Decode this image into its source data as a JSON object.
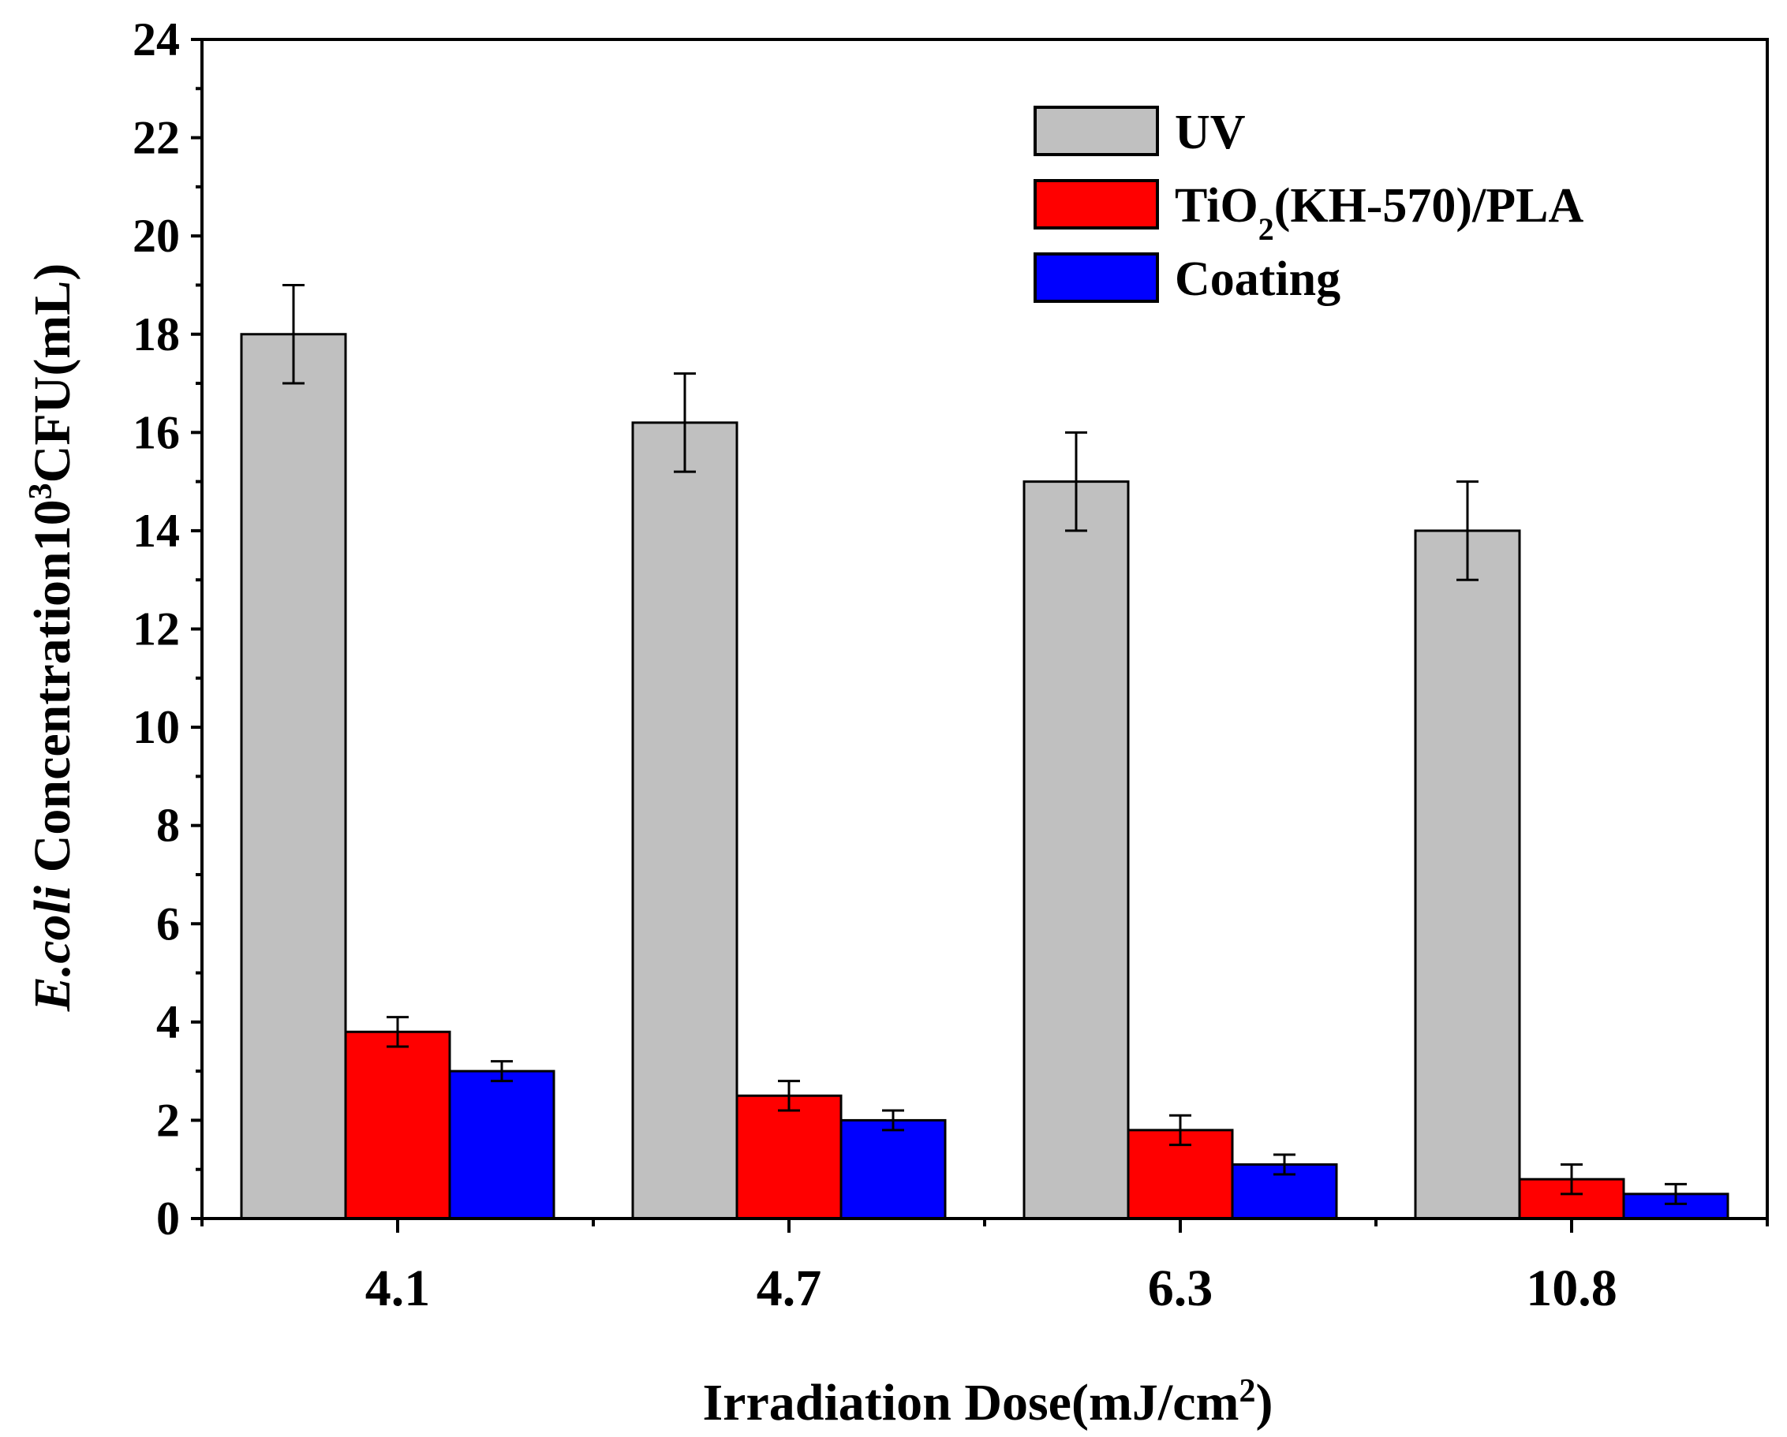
{
  "chart_data": {
    "type": "bar",
    "title": "",
    "xlabel": {
      "main": "Irradiation Dose(mJ/cm",
      "sup": "2",
      "tail": ")"
    },
    "ylabel": {
      "italic": "E.coli",
      "main": " Concentration10",
      "sup": "3",
      "tail": "CFU(mL)"
    },
    "ylim": [
      0,
      24
    ],
    "y_major_step": 2,
    "y_minor_step": 1,
    "y_ticks": [
      "0",
      "2",
      "4",
      "6",
      "8",
      "10",
      "12",
      "14",
      "16",
      "18",
      "20",
      "22",
      "24"
    ],
    "categories": [
      "4.1",
      "4.7",
      "6.3",
      "10.8"
    ],
    "series": [
      {
        "name": "UV",
        "legend": {
          "main": "UV",
          "sub": "",
          "tail": ""
        },
        "color": "#c0c0c0",
        "values": [
          18.0,
          16.2,
          15.0,
          14.0
        ],
        "errors": [
          1.0,
          1.0,
          1.0,
          1.0
        ]
      },
      {
        "name": "TiO2(KH-570)/PLA",
        "legend": {
          "main": "TiO",
          "sub": "2",
          "tail": "(KH-570)/PLA"
        },
        "color": "#ff0000",
        "values": [
          3.8,
          2.5,
          1.8,
          0.8
        ],
        "errors": [
          0.3,
          0.3,
          0.3,
          0.3
        ]
      },
      {
        "name": "Coating",
        "legend": {
          "main": "Coating",
          "sub": "",
          "tail": ""
        },
        "color": "#0000ff",
        "values": [
          3.0,
          2.0,
          1.1,
          0.5
        ],
        "errors": [
          0.2,
          0.2,
          0.2,
          0.2
        ]
      }
    ],
    "legend_position": "top-right",
    "grid": false
  }
}
